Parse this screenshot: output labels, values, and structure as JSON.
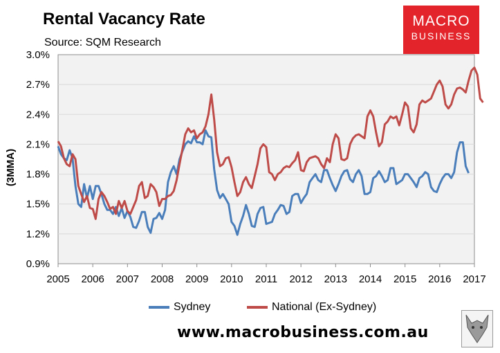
{
  "header": {
    "title": "Rental Vacancy Rate",
    "subtitle": "Source: SQM Research"
  },
  "logo": {
    "line1": "MACRO",
    "line2": "BUSINESS"
  },
  "footer": {
    "website": "www.macrobusiness.com.au"
  },
  "colors": {
    "sydney": "#4a7ebb",
    "national": "#be4b48",
    "logo_bg": "#e3242b",
    "plot_bg": "#f2f2f2",
    "grid": "#d9d9d9"
  },
  "chart_data": {
    "type": "line",
    "title": "Rental Vacancy Rate",
    "ylabel": "(3MMA)",
    "xlabel": "",
    "ylim": [
      0.9,
      3.0
    ],
    "xlim": [
      2005,
      2017
    ],
    "y_ticks": [
      "0.9%",
      "1.2%",
      "1.5%",
      "1.8%",
      "2.1%",
      "2.4%",
      "2.7%",
      "3.0%"
    ],
    "y_tick_values": [
      0.9,
      1.2,
      1.5,
      1.8,
      2.1,
      2.4,
      2.7,
      3.0
    ],
    "x_ticks": [
      "2005",
      "2006",
      "2007",
      "2008",
      "2009",
      "2010",
      "2011",
      "2012",
      "2013",
      "2014",
      "2015",
      "2016",
      "2017"
    ],
    "grid": "horizontal",
    "legend_position": "bottom",
    "x_start": 2005,
    "x_step": 0.08333,
    "series": [
      {
        "name": "Sydney",
        "color": "#4a7ebb",
        "values": [
          2.08,
          2.0,
          1.96,
          1.94,
          2.04,
          1.96,
          1.68,
          1.5,
          1.47,
          1.7,
          1.56,
          1.68,
          1.55,
          1.68,
          1.68,
          1.6,
          1.5,
          1.44,
          1.44,
          1.4,
          1.47,
          1.38,
          1.46,
          1.36,
          1.43,
          1.37,
          1.27,
          1.26,
          1.33,
          1.42,
          1.42,
          1.27,
          1.21,
          1.35,
          1.36,
          1.41,
          1.35,
          1.44,
          1.72,
          1.82,
          1.88,
          1.8,
          1.95,
          2.03,
          2.1,
          2.13,
          2.11,
          2.18,
          2.12,
          2.12,
          2.1,
          2.24,
          2.18,
          2.17,
          1.85,
          1.64,
          1.56,
          1.6,
          1.55,
          1.5,
          1.32,
          1.28,
          1.19,
          1.3,
          1.38,
          1.49,
          1.4,
          1.28,
          1.27,
          1.4,
          1.46,
          1.47,
          1.3,
          1.31,
          1.32,
          1.4,
          1.44,
          1.49,
          1.48,
          1.4,
          1.42,
          1.58,
          1.6,
          1.6,
          1.51,
          1.56,
          1.6,
          1.72,
          1.76,
          1.8,
          1.74,
          1.72,
          1.84,
          1.84,
          1.76,
          1.69,
          1.63,
          1.7,
          1.78,
          1.83,
          1.84,
          1.75,
          1.72,
          1.8,
          1.84,
          1.78,
          1.6,
          1.6,
          1.62,
          1.76,
          1.78,
          1.83,
          1.78,
          1.72,
          1.74,
          1.86,
          1.86,
          1.7,
          1.72,
          1.74,
          1.8,
          1.8,
          1.76,
          1.72,
          1.67,
          1.76,
          1.78,
          1.82,
          1.8,
          1.67,
          1.63,
          1.62,
          1.7,
          1.76,
          1.8,
          1.8,
          1.76,
          1.82,
          2.02,
          2.12,
          2.12,
          1.88,
          1.81
        ]
      },
      {
        "name": "National (Ex-Sydney)",
        "color": "#be4b48",
        "values": [
          2.13,
          2.08,
          1.96,
          1.9,
          1.88,
          2.0,
          1.95,
          1.68,
          1.6,
          1.52,
          1.58,
          1.46,
          1.45,
          1.35,
          1.55,
          1.62,
          1.58,
          1.52,
          1.45,
          1.47,
          1.4,
          1.53,
          1.46,
          1.53,
          1.43,
          1.4,
          1.47,
          1.54,
          1.68,
          1.72,
          1.56,
          1.58,
          1.7,
          1.67,
          1.62,
          1.48,
          1.55,
          1.55,
          1.58,
          1.59,
          1.63,
          1.74,
          1.9,
          2.05,
          2.2,
          2.26,
          2.22,
          2.24,
          2.16,
          2.2,
          2.22,
          2.28,
          2.4,
          2.6,
          2.35,
          2.02,
          1.88,
          1.9,
          1.96,
          1.97,
          1.87,
          1.72,
          1.58,
          1.62,
          1.72,
          1.77,
          1.7,
          1.66,
          1.78,
          1.9,
          2.06,
          2.1,
          2.07,
          1.82,
          1.8,
          1.74,
          1.8,
          1.82,
          1.86,
          1.88,
          1.87,
          1.91,
          1.94,
          2.02,
          1.84,
          1.83,
          1.92,
          1.96,
          1.97,
          1.98,
          1.96,
          1.9,
          1.86,
          1.96,
          1.92,
          2.1,
          2.2,
          2.16,
          1.95,
          1.94,
          1.96,
          2.1,
          2.16,
          2.19,
          2.2,
          2.18,
          2.16,
          2.38,
          2.44,
          2.38,
          2.22,
          2.08,
          2.12,
          2.3,
          2.33,
          2.38,
          2.36,
          2.38,
          2.29,
          2.4,
          2.52,
          2.48,
          2.26,
          2.22,
          2.3,
          2.5,
          2.54,
          2.52,
          2.54,
          2.56,
          2.63,
          2.7,
          2.74,
          2.68,
          2.5,
          2.46,
          2.5,
          2.6,
          2.66,
          2.67,
          2.65,
          2.62,
          2.74,
          2.84,
          2.87,
          2.8,
          2.56,
          2.52
        ]
      }
    ]
  }
}
